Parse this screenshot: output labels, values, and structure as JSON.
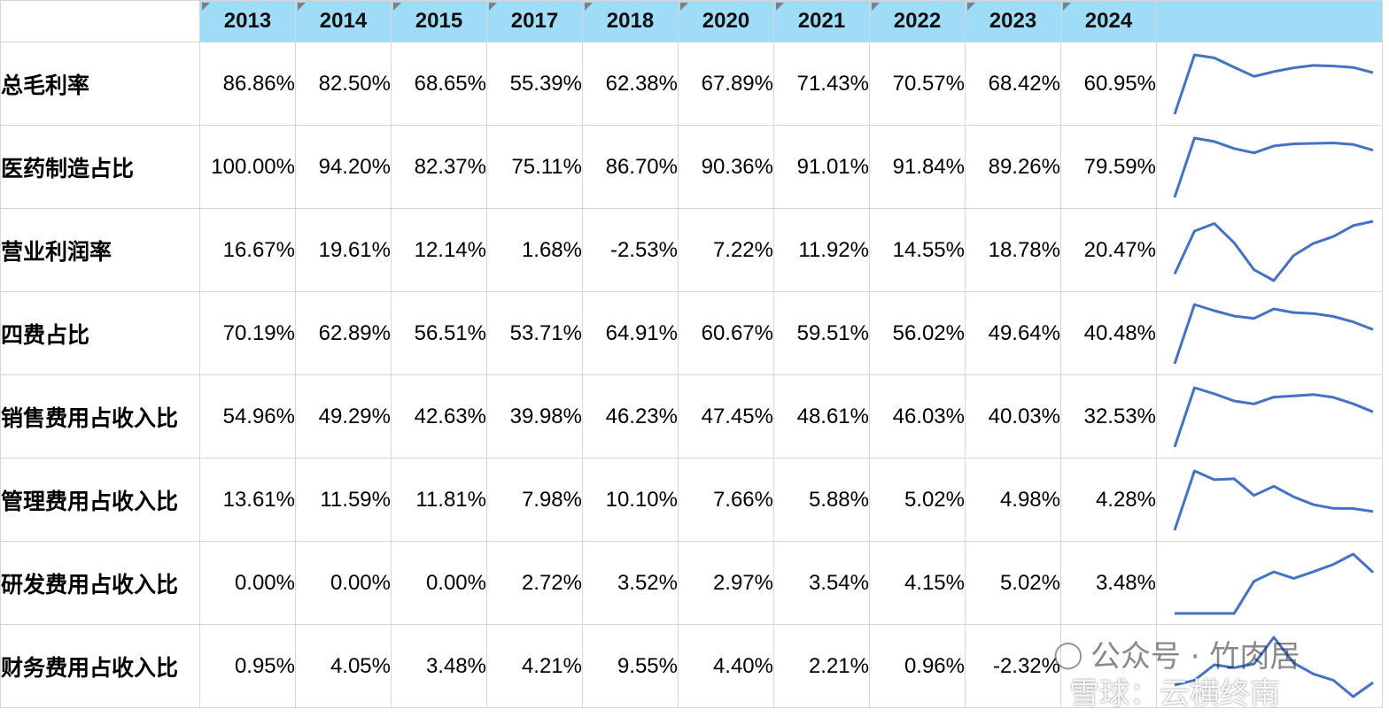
{
  "years": [
    "2013",
    "2014",
    "2015",
    "2017",
    "2018",
    "2020",
    "2021",
    "2022",
    "2023",
    "2024"
  ],
  "rows": [
    {
      "label": "总毛利率",
      "values": [
        "86.86%",
        "82.50%",
        "68.65%",
        "55.39%",
        "62.38%",
        "67.89%",
        "71.43%",
        "70.57%",
        "68.42%",
        "60.95%"
      ]
    },
    {
      "label": "医药制造占比",
      "values": [
        "100.00%",
        "94.20%",
        "82.37%",
        "75.11%",
        "86.70%",
        "90.36%",
        "91.01%",
        "91.84%",
        "89.26%",
        "79.59%"
      ]
    },
    {
      "label": "营业利润率",
      "values": [
        "16.67%",
        "19.61%",
        "12.14%",
        "1.68%",
        "-2.53%",
        "7.22%",
        "11.92%",
        "14.55%",
        "18.78%",
        "20.47%"
      ]
    },
    {
      "label": "四费占比",
      "values": [
        "70.19%",
        "62.89%",
        "56.51%",
        "53.71%",
        "64.91%",
        "60.67%",
        "59.51%",
        "56.02%",
        "49.64%",
        "40.48%"
      ]
    },
    {
      "label": "销售费用占收入比",
      "values": [
        "54.96%",
        "49.29%",
        "42.63%",
        "39.98%",
        "46.23%",
        "47.45%",
        "48.61%",
        "46.03%",
        "40.03%",
        "32.53%"
      ]
    },
    {
      "label": "管理费用占收入比",
      "values": [
        "13.61%",
        "11.59%",
        "11.81%",
        "7.98%",
        "10.10%",
        "7.66%",
        "5.88%",
        "5.02%",
        "4.98%",
        "4.28%"
      ]
    },
    {
      "label": "研发费用占收入比",
      "values": [
        "0.00%",
        "0.00%",
        "0.00%",
        "2.72%",
        "3.52%",
        "2.97%",
        "3.54%",
        "4.15%",
        "5.02%",
        "3.48%"
      ]
    },
    {
      "label": "财务费用占收入比",
      "values": [
        "0.95%",
        "4.05%",
        "3.48%",
        "4.21%",
        "9.55%",
        "4.40%",
        "2.21%",
        "0.96%",
        "-2.32%",
        ""
      ]
    }
  ],
  "sparklines": [
    {
      "series": [
        0,
        86.86,
        82.5,
        68.65,
        55.39,
        62.38,
        67.89,
        71.43,
        70.57,
        68.42,
        60.95
      ]
    },
    {
      "series": [
        0,
        100.0,
        94.2,
        82.37,
        75.11,
        86.7,
        90.36,
        91.01,
        91.84,
        89.26,
        79.59
      ]
    },
    {
      "series": [
        0,
        16.67,
        19.61,
        12.14,
        1.68,
        -2.53,
        7.22,
        11.92,
        14.55,
        18.78,
        20.47
      ]
    },
    {
      "series": [
        0,
        70.19,
        62.89,
        56.51,
        53.71,
        64.91,
        60.67,
        59.51,
        56.02,
        49.64,
        40.48
      ]
    },
    {
      "series": [
        0,
        54.96,
        49.29,
        42.63,
        39.98,
        46.23,
        47.45,
        48.61,
        46.03,
        40.03,
        32.53
      ]
    },
    {
      "series": [
        0,
        13.61,
        11.59,
        11.81,
        7.98,
        10.1,
        7.66,
        5.88,
        5.02,
        4.98,
        4.28
      ]
    },
    {
      "series": [
        0,
        0.0,
        0.0,
        0.0,
        2.72,
        3.52,
        2.97,
        3.54,
        4.15,
        5.02,
        3.48
      ]
    },
    {
      "series": [
        0,
        0.95,
        4.05,
        3.48,
        4.21,
        9.55,
        4.4,
        2.21,
        0.96,
        -2.32,
        0.5
      ]
    }
  ],
  "sparkline_color": "#4472c4",
  "header_color": "#9fdcf8",
  "watermark": {
    "line1": "公众号 · 竹肉居",
    "line2": "雪球：云横终南",
    "icon": "wechat-icon"
  }
}
